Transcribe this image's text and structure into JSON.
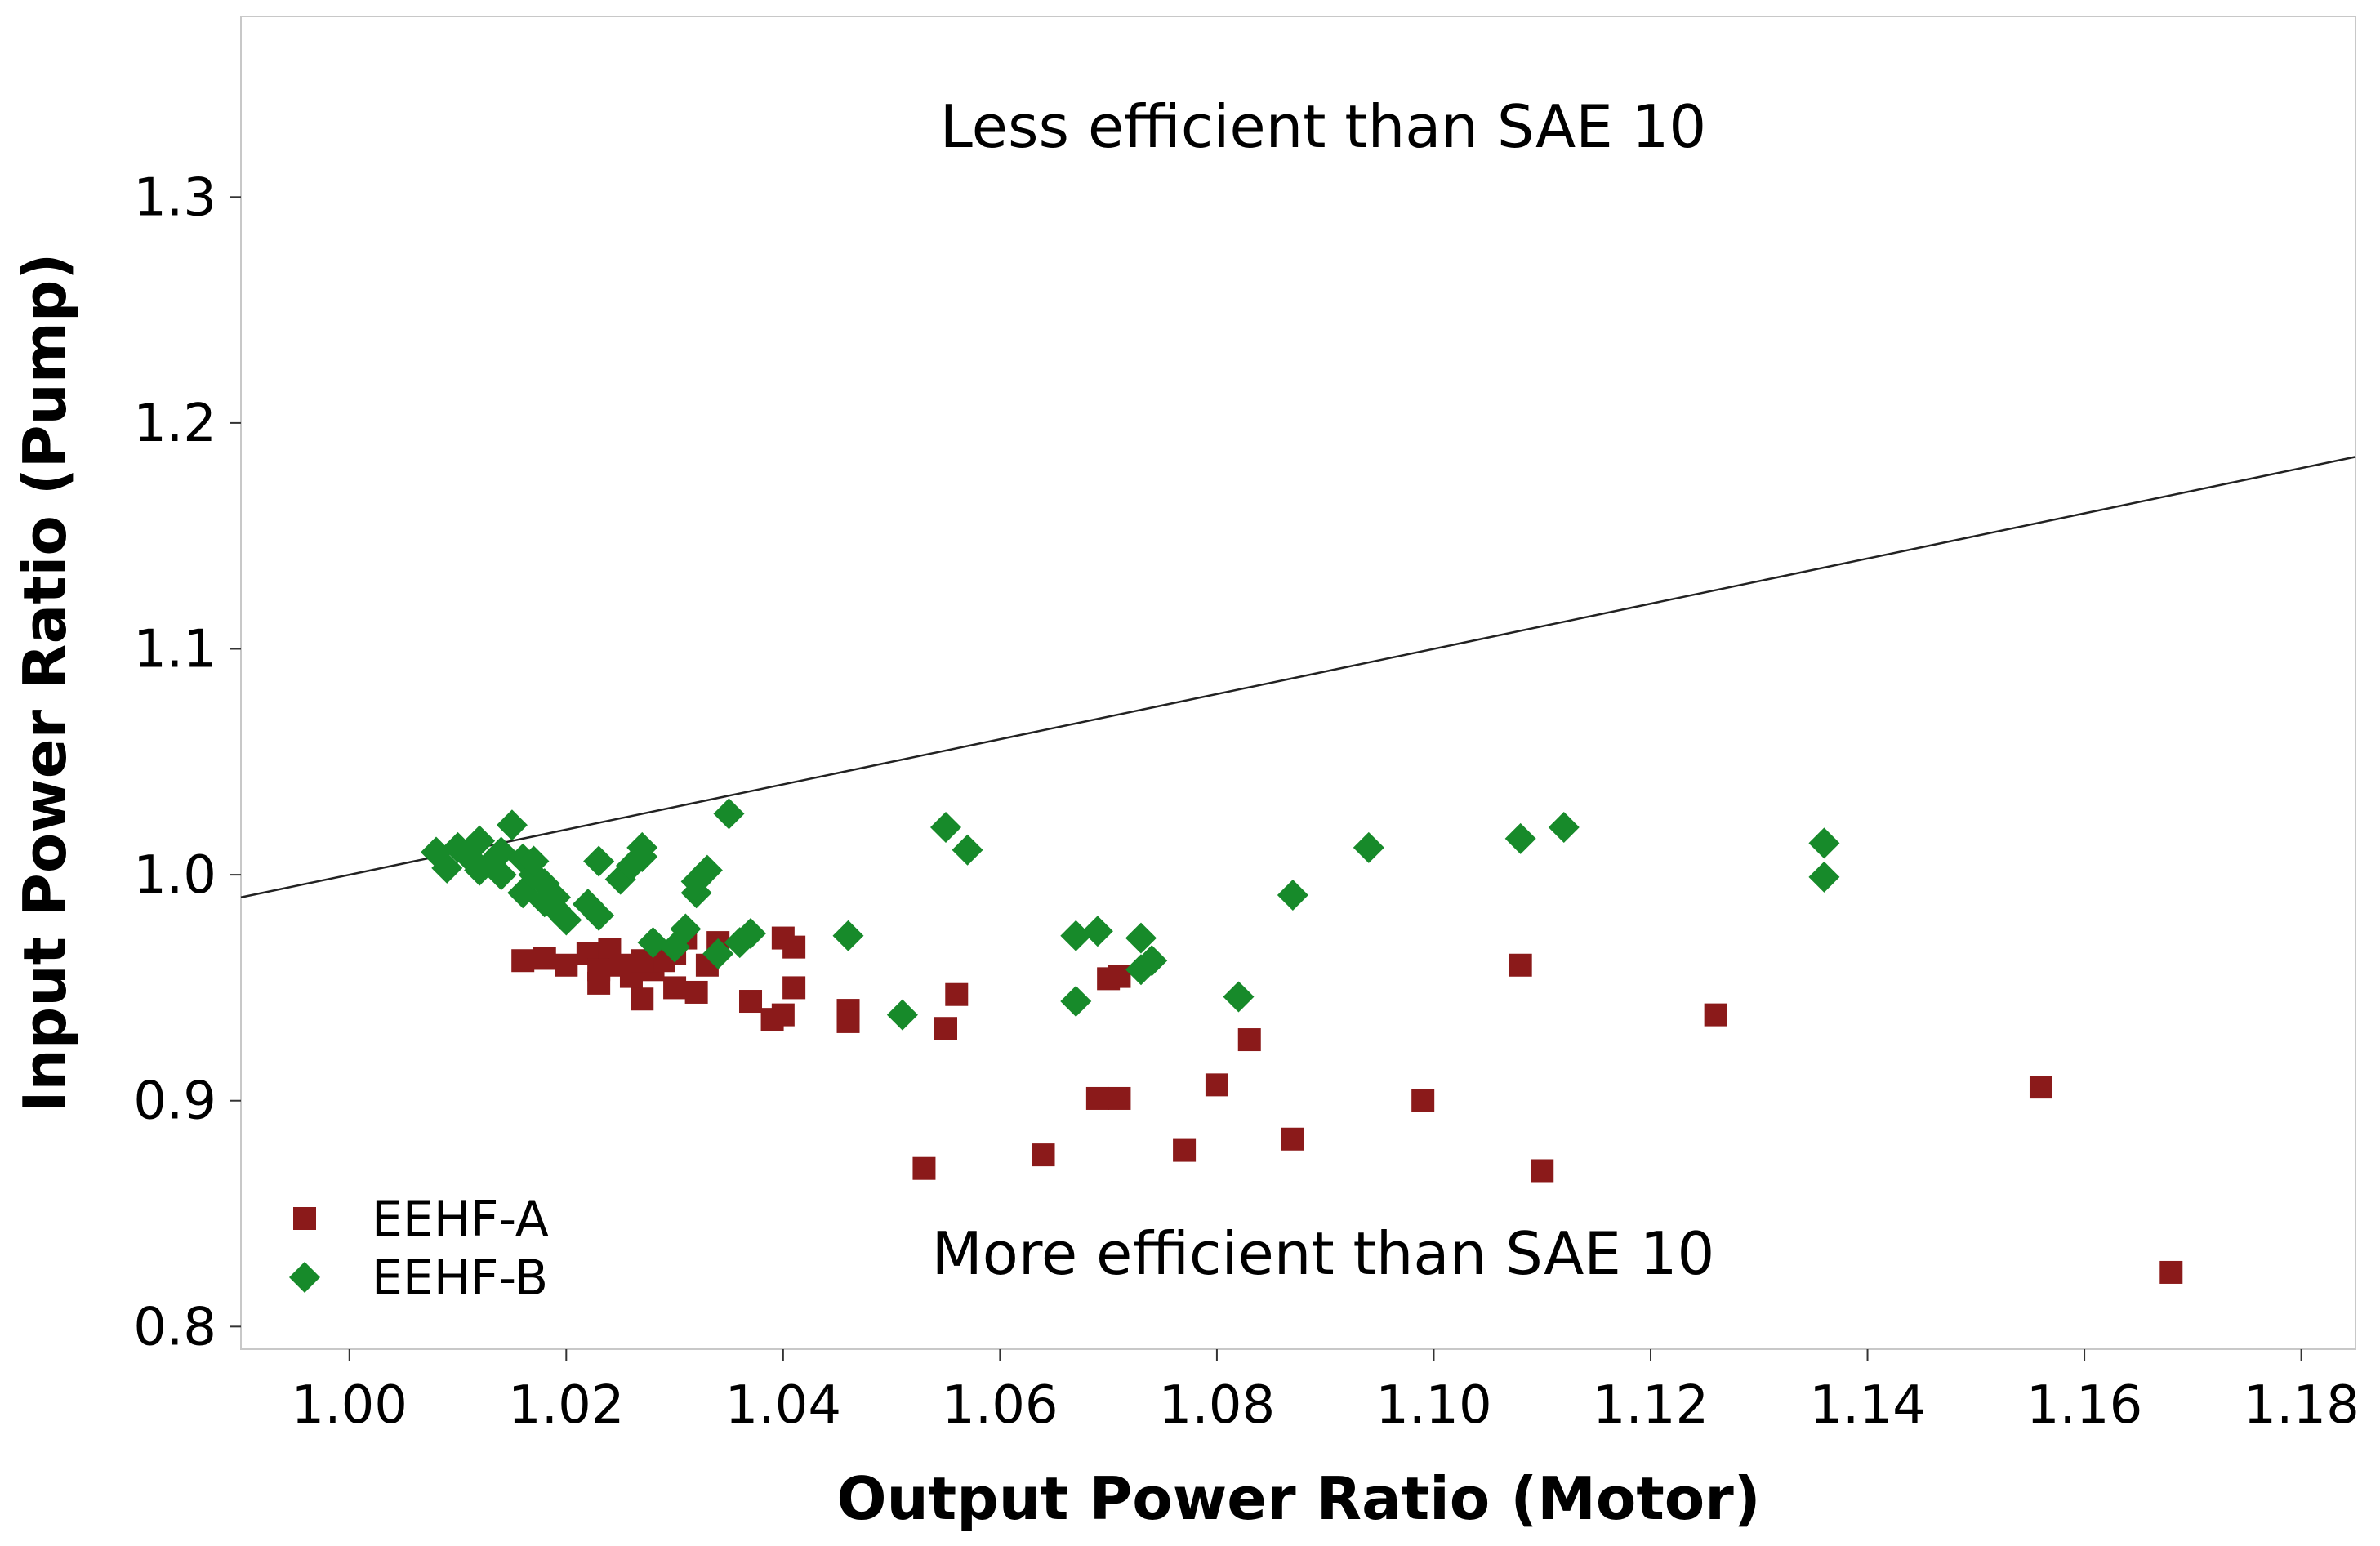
{
  "chart_data": {
    "type": "scatter",
    "title": "",
    "xlabel": "Output Power Ratio (Motor)",
    "ylabel": "Input Power Ratio (Pump)",
    "xlim": [
      0.99,
      1.185
    ],
    "ylim": [
      0.79,
      1.38
    ],
    "xticks": [
      1.0,
      1.02,
      1.04,
      1.06,
      1.08,
      1.1,
      1.12,
      1.14,
      1.16,
      1.18
    ],
    "xtick_labels": [
      "1.00",
      "1.02",
      "1.04",
      "1.06",
      "1.08",
      "1.10",
      "1.12",
      "1.14",
      "1.16",
      "1.18"
    ],
    "yticks": [
      0.8,
      0.9,
      1.0,
      1.1,
      1.2,
      1.3
    ],
    "ytick_labels": [
      "0.8",
      "0.9",
      "1.0",
      "1.1",
      "1.2",
      "1.3"
    ],
    "grid": false,
    "legend_position": "bottom-left",
    "annotations": {
      "upper": "Less efficient than SAE 10",
      "lower": "More efficient than SAE 10"
    },
    "reference_line": {
      "name": "y = x",
      "x": [
        0.99,
        1.185
      ],
      "y": [
        0.99,
        1.185
      ]
    },
    "series": [
      {
        "name": "EEHF-A",
        "marker": "square",
        "color": "#8B1A1A",
        "x": [
          1.016,
          1.018,
          1.02,
          1.022,
          1.023,
          1.024,
          1.025,
          1.026,
          1.027,
          1.028,
          1.029,
          1.03,
          1.031,
          1.032,
          1.033,
          1.034,
          1.037,
          1.039,
          1.04,
          1.04,
          1.041,
          1.041,
          1.046,
          1.046,
          1.053,
          1.055,
          1.056,
          1.064,
          1.069,
          1.07,
          1.071,
          1.071,
          1.077,
          1.08,
          1.083,
          1.087,
          1.099,
          1.108,
          1.11,
          1.126,
          1.156,
          1.168,
          1.023,
          1.027,
          1.03
        ],
        "y": [
          0.962,
          0.963,
          0.96,
          0.965,
          0.952,
          0.967,
          0.96,
          0.955,
          0.945,
          0.958,
          0.962,
          0.95,
          0.972,
          0.948,
          0.96,
          0.97,
          0.944,
          0.936,
          0.938,
          0.972,
          0.968,
          0.95,
          0.94,
          0.935,
          0.87,
          0.932,
          0.947,
          0.876,
          0.901,
          0.954,
          0.955,
          0.901,
          0.878,
          0.907,
          0.927,
          0.883,
          0.9,
          0.96,
          0.869,
          0.938,
          0.906,
          0.824,
          0.958,
          0.962,
          0.965
        ]
      },
      {
        "name": "EEHF-B",
        "marker": "diamond",
        "color": "#178A2A",
        "x": [
          1.008,
          1.009,
          1.01,
          1.011,
          1.012,
          1.012,
          1.013,
          1.014,
          1.014,
          1.015,
          1.016,
          1.016,
          1.017,
          1.017,
          1.018,
          1.018,
          1.019,
          1.019,
          1.02,
          1.022,
          1.023,
          1.023,
          1.025,
          1.026,
          1.027,
          1.027,
          1.028,
          1.03,
          1.031,
          1.032,
          1.032,
          1.033,
          1.034,
          1.035,
          1.036,
          1.037,
          1.046,
          1.051,
          1.055,
          1.057,
          1.067,
          1.067,
          1.069,
          1.073,
          1.073,
          1.074,
          1.082,
          1.087,
          1.094,
          1.108,
          1.112,
          1.136,
          1.136
        ],
        "y": [
          1.01,
          1.003,
          1.012,
          1.008,
          1.015,
          1.002,
          1.005,
          1.0,
          1.01,
          1.022,
          1.007,
          0.992,
          1.0,
          1.006,
          0.988,
          0.996,
          0.99,
          0.985,
          0.98,
          0.987,
          0.982,
          1.006,
          0.998,
          1.004,
          1.008,
          1.012,
          0.97,
          0.968,
          0.976,
          0.992,
          0.997,
          1.002,
          0.965,
          1.027,
          0.97,
          0.974,
          0.973,
          0.938,
          1.021,
          1.011,
          0.973,
          0.944,
          0.975,
          0.972,
          0.958,
          0.962,
          0.946,
          0.991,
          1.012,
          1.016,
          1.021,
          0.999,
          1.014
        ]
      }
    ]
  }
}
